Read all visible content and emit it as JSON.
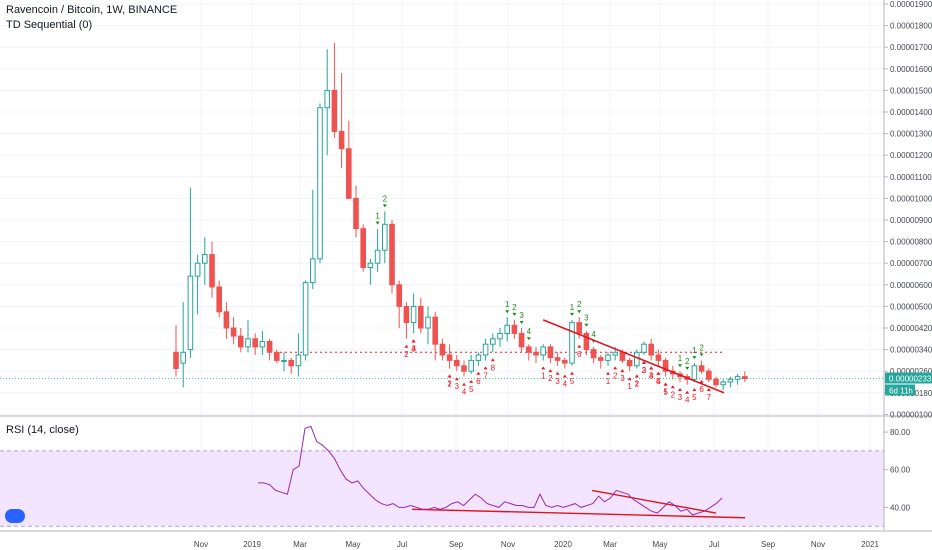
{
  "legend": {
    "symbol": "Ravencoin / Bitcoin, 1W, BINANCE",
    "indicator": "TD Sequential (0)",
    "rsi": "RSI (14, close)"
  },
  "price_labels": {
    "last_price": "0.00000233",
    "countdown": "6d 11h"
  },
  "colors": {
    "up": "#26a69a",
    "down": "#ef5350",
    "trendline": "#e3131b",
    "rsi_line": "#9c27b0",
    "rsi_band": "#f3e5ff",
    "td_buy": "#ef1a24",
    "td_sell": "#1a8c1a",
    "last_price_box": "#26a69a"
  },
  "chart_data": [
    {
      "type": "candlestick",
      "title": "Ravencoin / Bitcoin, 1W, BINANCE",
      "ylim": [
        1e-06,
        1.9e-06
      ],
      "y_ticks": [
        "0.00001900",
        "0.00001800",
        "0.00001700",
        "0.00001600",
        "0.00001500",
        "0.00001400",
        "0.00001300",
        "0.00001200",
        "0.00001100",
        "0.00001000",
        "0.00000900",
        "0.00000800",
        "0.00000700",
        "0.00000600",
        "0.00000500",
        "0.00000420",
        "0.00000340",
        "0.00000260",
        "0.00000180",
        "0.00000100"
      ],
      "x_ticks": [
        "Nov",
        "2019",
        "Mar",
        "May",
        "Jul",
        "Sep",
        "Nov",
        "2020",
        "Mar",
        "May",
        "Jul",
        "Sep",
        "Nov",
        "2021"
      ],
      "last_price": "0.00000233",
      "candles_ohlc_scaled_1e8": [
        [
          330,
          430,
          240,
          270
        ],
        [
          290,
          520,
          200,
          330
        ],
        [
          340,
          1050,
          310,
          640
        ],
        [
          640,
          740,
          470,
          700
        ],
        [
          700,
          820,
          600,
          740
        ],
        [
          740,
          800,
          540,
          590
        ],
        [
          590,
          620,
          460,
          480
        ],
        [
          480,
          520,
          380,
          420
        ],
        [
          420,
          460,
          360,
          390
        ],
        [
          390,
          420,
          330,
          350
        ],
        [
          350,
          450,
          330,
          380
        ],
        [
          380,
          400,
          320,
          350
        ],
        [
          350,
          410,
          320,
          370
        ],
        [
          370,
          380,
          300,
          330
        ],
        [
          330,
          340,
          290,
          300
        ],
        [
          300,
          330,
          260,
          300
        ],
        [
          300,
          310,
          250,
          280
        ],
        [
          280,
          400,
          240,
          320
        ],
        [
          320,
          620,
          300,
          610
        ],
        [
          610,
          1040,
          580,
          720
        ],
        [
          720,
          1440,
          700,
          1420
        ],
        [
          1420,
          1690,
          1200,
          1500
        ],
        [
          1500,
          1720,
          1280,
          1310
        ],
        [
          1310,
          1580,
          1140,
          1230
        ],
        [
          1230,
          1360,
          1000,
          1000
        ],
        [
          1000,
          1060,
          820,
          860
        ],
        [
          860,
          880,
          660,
          680
        ],
        [
          680,
          720,
          600,
          700
        ],
        [
          700,
          860,
          660,
          760
        ],
        [
          760,
          940,
          700,
          880
        ],
        [
          880,
          900,
          560,
          600
        ],
        [
          600,
          620,
          420,
          500
        ],
        [
          500,
          520,
          380,
          440
        ],
        [
          440,
          560,
          400,
          500
        ],
        [
          500,
          540,
          400,
          420
        ],
        [
          420,
          500,
          360,
          460
        ],
        [
          460,
          480,
          300,
          360
        ],
        [
          360,
          380,
          300,
          320
        ],
        [
          320,
          360,
          270,
          300
        ],
        [
          300,
          320,
          260,
          280
        ],
        [
          280,
          300,
          240,
          260
        ],
        [
          260,
          320,
          250,
          300
        ],
        [
          300,
          330,
          280,
          320
        ],
        [
          320,
          380,
          300,
          360
        ],
        [
          360,
          400,
          330,
          380
        ],
        [
          380,
          420,
          350,
          400
        ],
        [
          400,
          460,
          370,
          430
        ],
        [
          430,
          450,
          380,
          400
        ],
        [
          400,
          420,
          330,
          350
        ],
        [
          350,
          360,
          300,
          330
        ],
        [
          330,
          350,
          290,
          320
        ],
        [
          320,
          360,
          300,
          350
        ],
        [
          350,
          360,
          290,
          310
        ],
        [
          310,
          330,
          280,
          300
        ],
        [
          300,
          310,
          270,
          290
        ],
        [
          290,
          450,
          280,
          440
        ],
        [
          440,
          460,
          380,
          400
        ],
        [
          400,
          410,
          320,
          340
        ],
        [
          340,
          350,
          290,
          310
        ],
        [
          310,
          320,
          270,
          300
        ],
        [
          300,
          330,
          280,
          320
        ],
        [
          320,
          350,
          300,
          330
        ],
        [
          330,
          340,
          290,
          300
        ],
        [
          300,
          310,
          260,
          280
        ],
        [
          280,
          340,
          270,
          330
        ],
        [
          330,
          370,
          320,
          360
        ],
        [
          360,
          380,
          300,
          320
        ],
        [
          320,
          340,
          280,
          300
        ],
        [
          300,
          310,
          240,
          260
        ],
        [
          260,
          280,
          230,
          250
        ],
        [
          250,
          260,
          220,
          240
        ],
        [
          240,
          250,
          210,
          230
        ],
        [
          230,
          290,
          220,
          280
        ],
        [
          280,
          300,
          250,
          260
        ],
        [
          260,
          270,
          220,
          230
        ],
        [
          230,
          240,
          200,
          210
        ],
        [
          210,
          230,
          190,
          220
        ],
        [
          220,
          240,
          200,
          230
        ],
        [
          230,
          250,
          210,
          240
        ],
        [
          240,
          260,
          220,
          233
        ]
      ],
      "td_sequential_labels": [
        "1",
        "2",
        "2",
        "3",
        "4",
        "1",
        "2",
        "3",
        "4",
        "5",
        "6",
        "7",
        "8",
        "1",
        "2",
        "3",
        "4",
        "1",
        "2",
        "3",
        "4",
        "5",
        "6",
        "1",
        "2",
        "3",
        "4",
        "1",
        "2",
        "3",
        "1",
        "2",
        "3",
        "4",
        "5",
        "1",
        "2",
        "3",
        "4",
        "5",
        "6",
        "7",
        "1",
        "2",
        "3",
        "4",
        "5",
        "1",
        "2",
        "1",
        "2"
      ]
    },
    {
      "type": "line",
      "title": "RSI (14, close)",
      "ylim": [
        28,
        88
      ],
      "y_ticks": [
        "80.00",
        "60.00",
        "40.00"
      ],
      "band": [
        30,
        70
      ],
      "values": [
        53,
        53,
        52,
        49,
        48,
        47,
        60,
        62,
        82,
        83,
        75,
        73,
        70,
        66,
        60,
        55,
        53,
        54,
        50,
        47,
        44,
        42,
        41,
        42,
        40,
        40,
        41,
        40,
        39,
        39,
        40,
        39,
        40,
        42,
        43,
        41,
        44,
        47,
        45,
        42,
        41,
        40,
        43,
        42,
        41,
        41,
        40,
        40,
        47,
        41,
        40,
        41,
        40,
        41,
        42,
        40,
        41,
        42,
        46,
        43,
        45,
        49,
        48,
        47,
        44,
        42,
        40,
        38,
        37,
        40,
        43,
        41,
        38,
        39,
        36,
        37,
        38,
        40,
        42,
        45
      ],
      "trendlines": [
        "rsi-falling-trendline",
        "rsi-support-trendline"
      ]
    }
  ]
}
